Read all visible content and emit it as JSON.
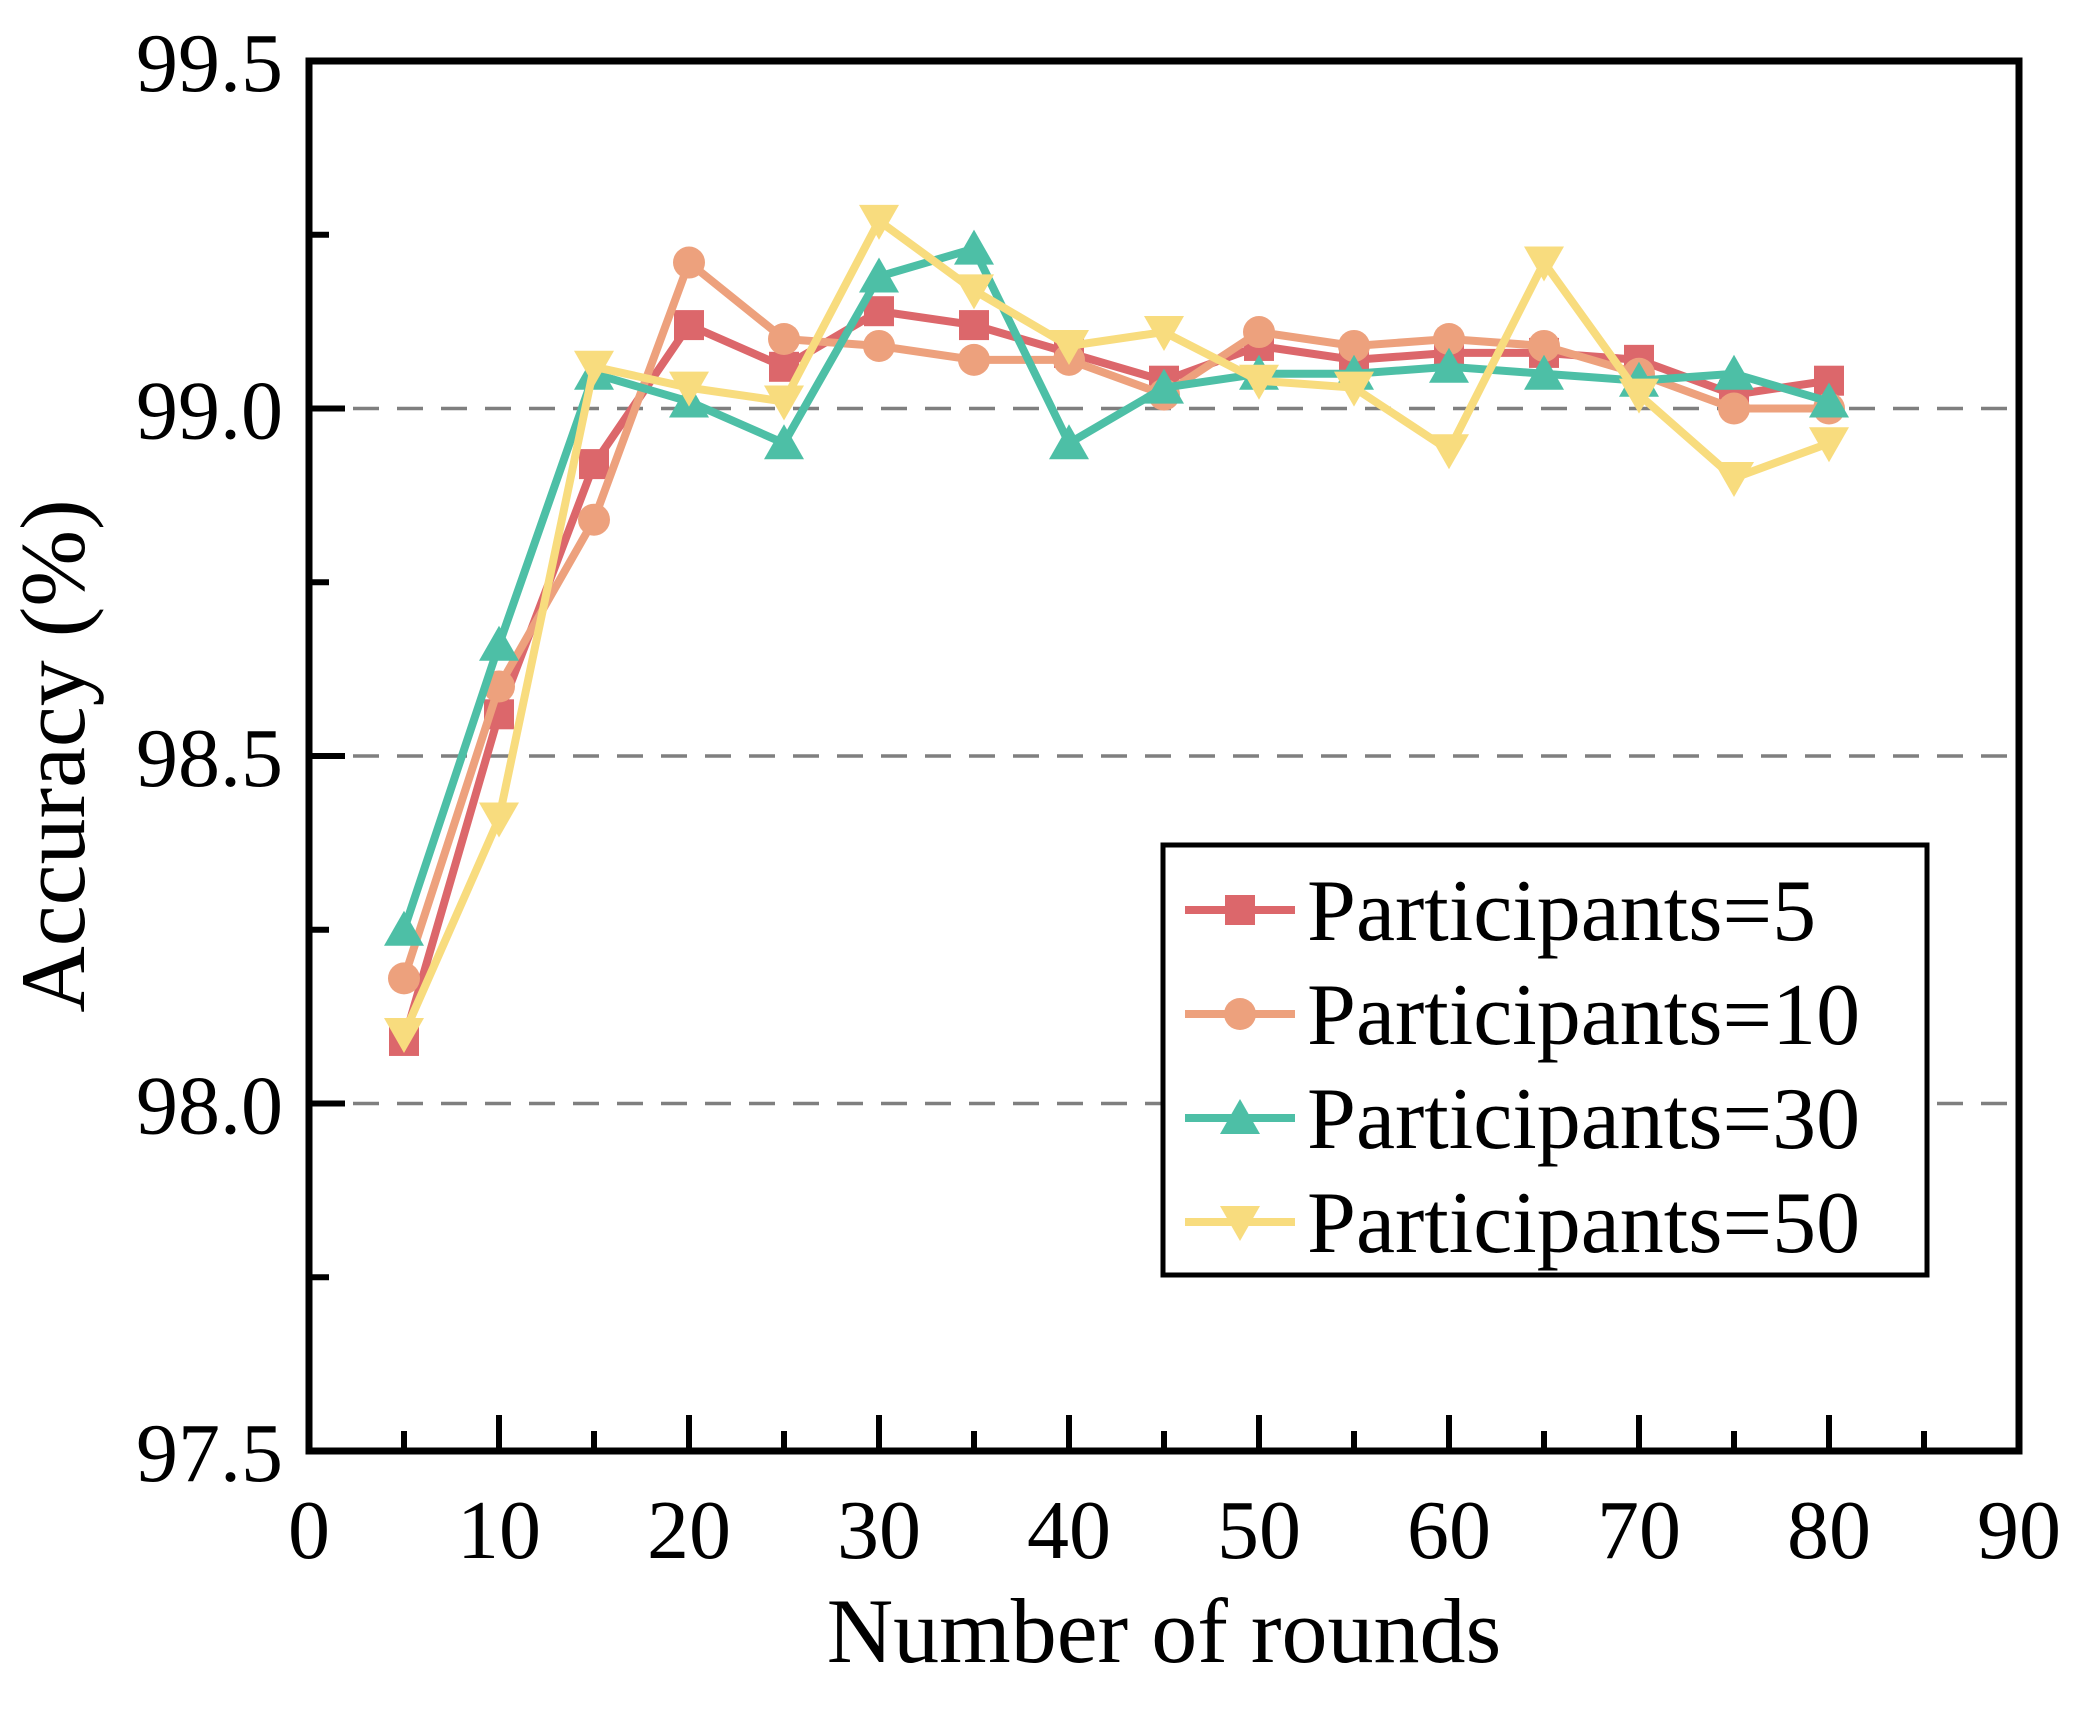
{
  "chart_data": {
    "type": "line",
    "title": "",
    "xlabel": "Number of rounds",
    "ylabel": "Accuracy (%)",
    "xlim": [
      0,
      90
    ],
    "ylim": [
      97.5,
      99.5
    ],
    "x_major_ticks": [
      0,
      10,
      20,
      30,
      40,
      50,
      60,
      70,
      80,
      90
    ],
    "x_minor_ticks": [
      5,
      15,
      25,
      35,
      45,
      55,
      65,
      75,
      85
    ],
    "y_major_ticks": [
      99.5,
      99.0,
      98.5,
      98.0,
      97.5
    ],
    "y_minor_ticks": [
      99.25,
      98.75,
      98.25,
      97.75
    ],
    "y_tick_decimals": 1,
    "grid": {
      "y_values": [
        99.0,
        98.5,
        98.0
      ],
      "style": "dashed",
      "color": "#7f7f7f"
    },
    "legend_position": "center-right-inside",
    "x": [
      5,
      10,
      15,
      20,
      25,
      30,
      35,
      40,
      45,
      50,
      55,
      60,
      65,
      70,
      75,
      80
    ],
    "series": [
      {
        "name": "Participants=5",
        "marker": "square",
        "color": "#dc676b",
        "values": [
          98.09,
          98.56,
          98.92,
          99.12,
          99.06,
          99.14,
          99.12,
          99.08,
          99.04,
          99.09,
          99.07,
          99.08,
          99.08,
          99.07,
          99.02,
          99.04
        ]
      },
      {
        "name": "Participants=10",
        "marker": "circle",
        "color": "#eda17d",
        "values": [
          98.18,
          98.6,
          98.84,
          99.21,
          99.1,
          99.09,
          99.07,
          99.07,
          99.02,
          99.11,
          99.09,
          99.1,
          99.09,
          99.05,
          99.0,
          99.0
        ]
      },
      {
        "name": "Participants=30",
        "marker": "triangle-up",
        "color": "#4dbfa6",
        "values": [
          98.25,
          98.66,
          99.05,
          99.01,
          98.95,
          99.19,
          99.23,
          98.95,
          99.03,
          99.05,
          99.05,
          99.06,
          99.05,
          99.04,
          99.05,
          99.01
        ]
      },
      {
        "name": "Participants=50",
        "marker": "triangle-down",
        "color": "#f8dc7e",
        "values": [
          98.1,
          98.41,
          99.06,
          99.03,
          99.01,
          99.27,
          99.17,
          99.09,
          99.11,
          99.04,
          99.03,
          98.94,
          99.21,
          99.02,
          98.9,
          98.95
        ]
      }
    ],
    "frame_color": "#000000",
    "background_color": "#ffffff"
  }
}
